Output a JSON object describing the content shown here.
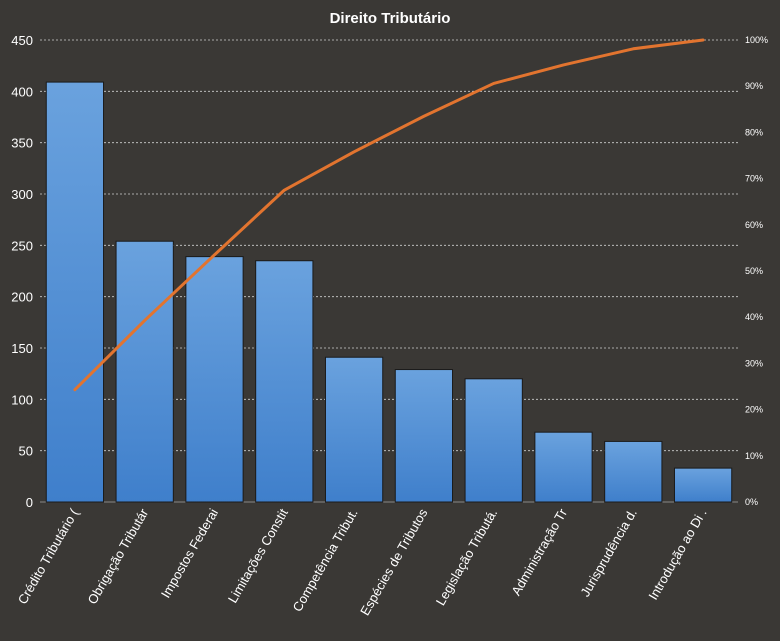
{
  "chart_data": {
    "type": "bar",
    "title": "Direito  Tributário",
    "categories": [
      "Crédito Tributário (",
      "Obrigação Tributár",
      "Impostos Federai",
      "Limitações Constit",
      "Competência Tribut.",
      "Espécies de Tributos",
      "Legislação Tributá.",
      "Administração Tr",
      "Jurisprudência d.",
      "Introdução ao Di ."
    ],
    "series": [
      {
        "type": "bar",
        "values": [
          409,
          254,
          239,
          235,
          141,
          129,
          120,
          68,
          59,
          33
        ]
      },
      {
        "type": "line",
        "axis": "secondary",
        "values": [
          0.243,
          0.393,
          0.535,
          0.675,
          0.758,
          0.835,
          0.906,
          0.946,
          0.981,
          1.0
        ]
      }
    ],
    "ylim": [
      0,
      450
    ],
    "yticks": [
      "0",
      "50",
      "100",
      "150",
      "200",
      "250",
      "300",
      "350",
      "400",
      "450"
    ],
    "y2lim": [
      0,
      1
    ],
    "y2ticks": [
      "0%",
      "10%",
      "20%",
      "30%",
      "40%",
      "50%",
      "60%",
      "70%",
      "80%",
      "90%",
      "100%"
    ],
    "grid": true,
    "colors": {
      "background": "#3a3835",
      "bar_top": "#6aa2de",
      "bar_bottom": "#3f7fcb",
      "bar_border": "#1a1a1a",
      "line": "#e2742f",
      "grid": "#d0d0d0",
      "text": "#ffffff"
    }
  }
}
